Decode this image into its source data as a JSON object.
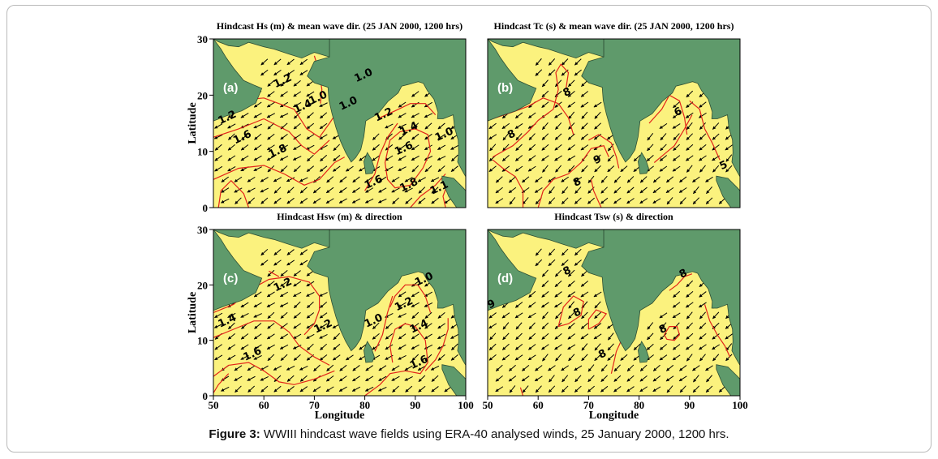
{
  "figure": {
    "caption_label": "Figure 3:",
    "caption_text": " WWIII hindcast wave fields using ERA-40 analysed winds, 25 January 2000, 1200 hrs."
  },
  "colors": {
    "land": "#5f9a6b",
    "sea": "#fbf27e",
    "contour": "#e2231a",
    "arrow": "#000000"
  },
  "chart_data": [
    {
      "type": "contour",
      "panel_label": "(a)",
      "title": "Hindcast Hs (m) & mean wave dir. (25 JAN 2000, 1200 hrs)",
      "ylabel": "Latitude",
      "xlabel": "",
      "xlim": [
        50,
        100
      ],
      "ylim": [
        0,
        30
      ],
      "yticks": [
        0,
        10,
        20,
        30
      ],
      "xticks": [],
      "contour_labels": [
        "1.2",
        "1.4",
        "1.2",
        "1.0",
        "1.6",
        "1.8",
        "1.0",
        "1.0",
        "1.2",
        "1.4",
        "1.6",
        "1.8",
        "1.6",
        "1.0",
        "1.1"
      ],
      "mean_wave_direction": "north-east monsoon: arrows toward south-west"
    },
    {
      "type": "contour",
      "panel_label": "(b)",
      "title": "Hindcast Tc (s) & mean wave dir. (25 JAN 2000, 1200 hrs)",
      "ylabel": "",
      "xlabel": "",
      "xlim": [
        50,
        100
      ],
      "ylim": [
        0,
        30
      ],
      "yticks": [],
      "xticks": [],
      "contour_labels": [
        "8",
        "8",
        "9",
        "8",
        "6",
        "5"
      ]
    },
    {
      "type": "contour",
      "panel_label": "(c)",
      "title": "Hindcast Hsw (m) & direction",
      "ylabel": "Latitude",
      "xlabel": "Longitude",
      "xlim": [
        50,
        100
      ],
      "ylim": [
        0,
        30
      ],
      "yticks": [
        0,
        10,
        20,
        30
      ],
      "xticks": [
        50,
        60,
        70,
        80,
        90,
        100
      ],
      "contour_labels": [
        "1.2",
        "1.4",
        "1.2",
        "1.6",
        "1.0",
        "1.0",
        "1.2",
        "1.4",
        "1.6"
      ]
    },
    {
      "type": "contour",
      "panel_label": "(d)",
      "title": "Hindcast Tsw (s) & direction",
      "ylabel": "",
      "xlabel": "Longitude",
      "xlim": [
        50,
        100
      ],
      "ylim": [
        0,
        30
      ],
      "yticks": [],
      "xticks": [
        50,
        60,
        70,
        80,
        90,
        100
      ],
      "contour_labels": [
        "8",
        "9",
        "8",
        "8",
        "8",
        "8"
      ]
    }
  ]
}
